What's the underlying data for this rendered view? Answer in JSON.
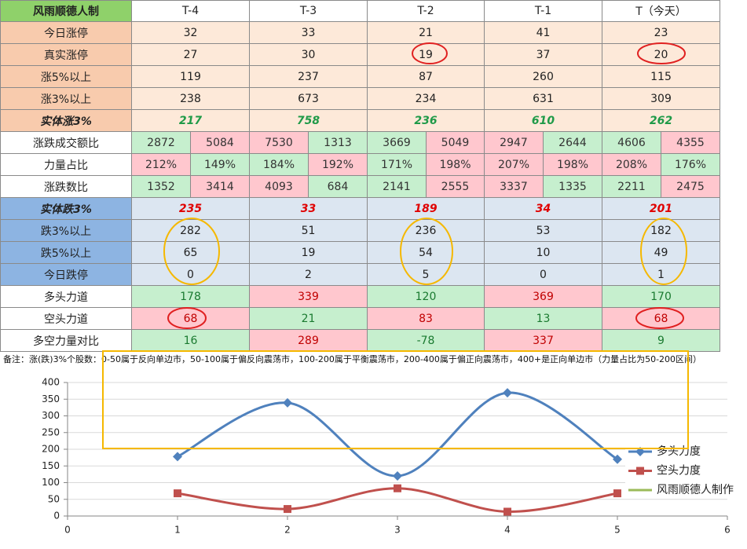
{
  "table": {
    "rows": [
      {
        "label": "风雨顺德人制",
        "cells": [
          "T-4",
          "T-3",
          "T-2",
          "T-1",
          "T（今天）"
        ]
      },
      {
        "label": "今日涨停",
        "cells": [
          32,
          33,
          21,
          41,
          23
        ]
      },
      {
        "label": "真实涨停",
        "cells": [
          27,
          30,
          19,
          37,
          20
        ]
      },
      {
        "label": "涨5%以上",
        "cells": [
          119,
          237,
          87,
          260,
          115
        ]
      },
      {
        "label": "涨3%以上",
        "cells": [
          238,
          673,
          234,
          631,
          309
        ]
      },
      {
        "label": "实体涨3%",
        "cells": [
          217,
          758,
          236,
          610,
          262
        ]
      },
      {
        "label": "涨跌成交额比",
        "cells": [
          [
            2872,
            5084
          ],
          [
            7530,
            1313
          ],
          [
            3669,
            5049
          ],
          [
            2947,
            2644
          ],
          [
            4606,
            4355
          ]
        ]
      },
      {
        "label": "力量占比",
        "cells": [
          [
            "212%",
            "149%"
          ],
          [
            "184%",
            "192%"
          ],
          [
            "171%",
            "198%"
          ],
          [
            "207%",
            "198%"
          ],
          [
            "208%",
            "176%"
          ]
        ]
      },
      {
        "label": "涨跌数比",
        "cells": [
          [
            1352,
            3414
          ],
          [
            4093,
            684
          ],
          [
            2141,
            2555
          ],
          [
            3337,
            1335
          ],
          [
            2211,
            2475
          ]
        ]
      },
      {
        "label": "实体跌3%",
        "cells": [
          235,
          33,
          189,
          34,
          201
        ]
      },
      {
        "label": "跌3%以上",
        "cells": [
          282,
          51,
          236,
          53,
          182
        ]
      },
      {
        "label": "跌5%以上",
        "cells": [
          65,
          19,
          54,
          10,
          49
        ]
      },
      {
        "label": "今日跌停",
        "cells": [
          0,
          2,
          5,
          0,
          1
        ]
      },
      {
        "label": "多头力道",
        "cells": [
          178,
          339,
          120,
          369,
          170
        ]
      },
      {
        "label": "空头力道",
        "cells": [
          68,
          21,
          83,
          13,
          68
        ]
      },
      {
        "label": "多空力量对比",
        "cells": [
          16,
          289,
          -78,
          337,
          9
        ]
      }
    ]
  },
  "note": "备注：涨(跌)3%个股数：0-50属于反向单边市，50-100属于偏反向震荡市，100-200属于平衡震荡市，200-400属于偏正向震荡市，400+是正向单边市（力量占比为50-200区间）",
  "chart_data": {
    "type": "line",
    "smooth": true,
    "x": [
      1,
      2,
      3,
      4,
      5
    ],
    "series": [
      {
        "name": "多头力度",
        "color": "#4f81bd",
        "marker": "diamond",
        "values": [
          178,
          339,
          120,
          369,
          170
        ]
      },
      {
        "name": "空头力度",
        "color": "#c0504d",
        "marker": "square",
        "values": [
          68,
          21,
          83,
          13,
          68
        ]
      },
      {
        "name": "风雨顺德人制作",
        "color": "#9bbb59",
        "values": [
          null,
          null,
          null,
          null,
          null
        ]
      }
    ],
    "xlim": [
      0,
      6
    ],
    "xticks": [
      0,
      1,
      2,
      3,
      4,
      5,
      6
    ],
    "ylim": [
      0,
      400
    ],
    "yticks": [
      0,
      50,
      100,
      150,
      200,
      250,
      300,
      350,
      400
    ],
    "grid": true,
    "legend": "right"
  }
}
